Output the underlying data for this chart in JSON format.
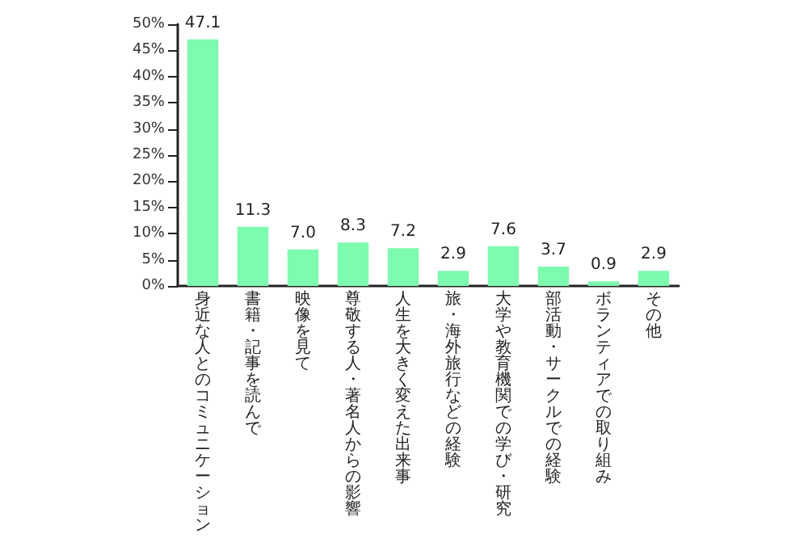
{
  "chart_data": {
    "type": "bar",
    "categories": [
      "身近な人とのコミュニケーション",
      "書籍・記事を読んで",
      "映像を見て",
      "尊敬する人・著名人からの影響",
      "人生を大きく変えた出来事",
      "旅・海外旅行などの経験",
      "大学や教育機関での学び・研究",
      "部活動・サークルでの経験",
      "ボランティアでの取り組み",
      "その他"
    ],
    "values": [
      47.1,
      11.3,
      7.0,
      8.3,
      7.2,
      2.9,
      7.6,
      3.7,
      0.9,
      2.9
    ],
    "value_labels": [
      "47.1",
      "11.3",
      "7.0",
      "8.3",
      "7.2",
      "2.9",
      "7.6",
      "3.7",
      "0.9",
      "2.9"
    ],
    "color": "#7dfbae",
    "ylim": [
      0,
      50
    ],
    "yticks": [
      {
        "value": 0,
        "label": "0%"
      },
      {
        "value": 5,
        "label": "5%"
      },
      {
        "value": 10,
        "label": "10%"
      },
      {
        "value": 15,
        "label": "15%"
      },
      {
        "value": 20,
        "label": "20%"
      },
      {
        "value": 25,
        "label": "25%"
      },
      {
        "value": 30,
        "label": "30%"
      },
      {
        "value": 35,
        "label": "35%"
      },
      {
        "value": 40,
        "label": "40%"
      },
      {
        "value": 45,
        "label": "45%"
      },
      {
        "value": 50,
        "label": "50%"
      }
    ],
    "grid": false
  }
}
